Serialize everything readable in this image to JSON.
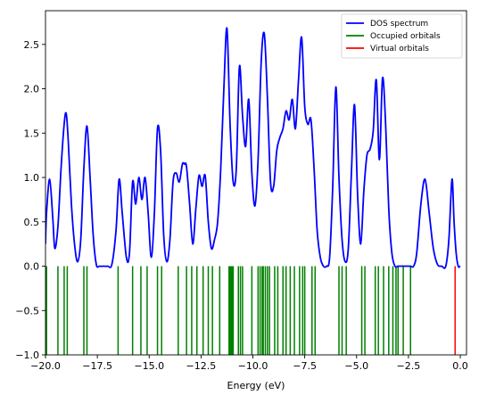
{
  "chart_data": {
    "type": "line",
    "xlabel": "Energy (eV)",
    "ylabel": "",
    "xlim": [
      -20.0,
      0.3
    ],
    "ylim": [
      -1.0,
      2.88
    ],
    "grid": false,
    "legend_placement": "top-right",
    "x_ticks": [
      -20.0,
      -17.5,
      -15.0,
      -12.5,
      -10.0,
      -7.5,
      -5.0,
      -2.5,
      0.0
    ],
    "x_tick_labels": [
      "−20.0",
      "−17.5",
      "−15.0",
      "−12.5",
      "−10.0",
      "−7.5",
      "−5.0",
      "−2.5",
      "0.0"
    ],
    "y_ticks": [
      -1.0,
      -0.5,
      0.0,
      0.5,
      1.0,
      1.5,
      2.0,
      2.5
    ],
    "y_tick_labels": [
      "−1.0",
      "−0.5",
      "0.0",
      "0.5",
      "1.0",
      "1.5",
      "2.0",
      "2.5"
    ],
    "series": [
      {
        "name": "DOS spectrum",
        "color": "#0000ff",
        "x": [
          -20.0,
          -19.95,
          -19.8,
          -19.65,
          -19.55,
          -19.4,
          -19.25,
          -19.1,
          -19.0,
          -18.9,
          -18.75,
          -18.6,
          -18.45,
          -18.3,
          -18.15,
          -18.0,
          -17.85,
          -17.7,
          -17.55,
          -17.4,
          -17.2,
          -17.0,
          -16.8,
          -16.6,
          -16.45,
          -16.3,
          -16.1,
          -15.95,
          -15.8,
          -15.65,
          -15.5,
          -15.35,
          -15.2,
          -15.05,
          -14.9,
          -14.75,
          -14.6,
          -14.45,
          -14.3,
          -14.15,
          -14.0,
          -13.85,
          -13.7,
          -13.55,
          -13.4,
          -13.3,
          -13.2,
          -13.05,
          -12.9,
          -12.75,
          -12.6,
          -12.45,
          -12.3,
          -12.15,
          -12.0,
          -11.85,
          -11.7,
          -11.55,
          -11.4,
          -11.25,
          -11.1,
          -10.95,
          -10.8,
          -10.65,
          -10.5,
          -10.35,
          -10.2,
          -10.05,
          -9.9,
          -9.75,
          -9.6,
          -9.45,
          -9.3,
          -9.15,
          -9.0,
          -8.85,
          -8.7,
          -8.55,
          -8.4,
          -8.25,
          -8.1,
          -7.95,
          -7.8,
          -7.65,
          -7.5,
          -7.35,
          -7.2,
          -7.05,
          -6.9,
          -6.75,
          -6.6,
          -6.45,
          -6.3,
          -6.15,
          -6.0,
          -5.85,
          -5.7,
          -5.55,
          -5.4,
          -5.25,
          -5.1,
          -4.95,
          -4.8,
          -4.65,
          -4.5,
          -4.35,
          -4.2,
          -4.05,
          -3.9,
          -3.75,
          -3.6,
          -3.45,
          -3.3,
          -3.15,
          -3.0,
          -2.85,
          -2.7,
          -2.55,
          -2.4,
          -2.25,
          -2.1,
          -1.9,
          -1.7,
          -1.5,
          -1.3,
          -1.1,
          -0.9,
          -0.7,
          -0.55,
          -0.4,
          -0.3,
          -0.2,
          -0.1,
          0.0
        ],
        "y": [
          0.25,
          0.6,
          0.98,
          0.55,
          0.2,
          0.45,
          1.1,
          1.6,
          1.72,
          1.4,
          0.7,
          0.25,
          0.05,
          0.3,
          1.1,
          1.58,
          1.0,
          0.35,
          0.02,
          0.0,
          0.0,
          0.0,
          0.02,
          0.4,
          0.98,
          0.6,
          0.1,
          0.15,
          0.95,
          0.7,
          1.0,
          0.75,
          1.0,
          0.6,
          0.1,
          0.6,
          1.55,
          1.3,
          0.35,
          0.05,
          0.3,
          0.95,
          1.05,
          0.95,
          1.15,
          1.15,
          1.12,
          0.7,
          0.25,
          0.65,
          1.02,
          0.9,
          1.02,
          0.5,
          0.2,
          0.3,
          0.5,
          1.1,
          2.0,
          2.68,
          1.6,
          0.95,
          1.1,
          2.25,
          1.7,
          1.35,
          1.88,
          1.05,
          0.68,
          1.2,
          2.3,
          2.62,
          1.9,
          0.95,
          0.9,
          1.3,
          1.45,
          1.55,
          1.75,
          1.65,
          1.88,
          1.55,
          2.1,
          2.58,
          1.8,
          1.6,
          1.65,
          1.1,
          0.4,
          0.1,
          0.0,
          0.0,
          0.1,
          0.9,
          2.02,
          1.0,
          0.3,
          0.05,
          0.2,
          1.05,
          1.82,
          0.8,
          0.25,
          0.85,
          1.25,
          1.32,
          1.52,
          2.1,
          1.2,
          2.12,
          1.6,
          0.65,
          0.15,
          0.0,
          0.0,
          0.0,
          0.0,
          0.0,
          0.0,
          0.0,
          0.15,
          0.7,
          0.98,
          0.6,
          0.2,
          0.02,
          0.0,
          0.0,
          0.3,
          0.98,
          0.5,
          0.15,
          0.0,
          0.0
        ]
      },
      {
        "name": "Occupied orbitals",
        "color": "#008000",
        "x": [
          -19.95,
          -19.4,
          -19.1,
          -18.95,
          -18.15,
          -18.0,
          -16.5,
          -15.8,
          -15.4,
          -15.1,
          -14.6,
          -14.4,
          -13.6,
          -13.2,
          -12.95,
          -12.7,
          -12.4,
          -12.15,
          -11.95,
          -11.6,
          -11.15,
          -11.1,
          -11.05,
          -11.0,
          -10.95,
          -10.7,
          -10.6,
          -10.5,
          -10.05,
          -9.75,
          -9.65,
          -9.55,
          -9.5,
          -9.4,
          -9.3,
          -9.2,
          -8.95,
          -8.8,
          -8.55,
          -8.4,
          -8.2,
          -8.0,
          -7.75,
          -7.6,
          -7.5,
          -7.15,
          -7.0,
          -5.85,
          -5.7,
          -5.5,
          -4.75,
          -4.6,
          -4.1,
          -3.95,
          -3.7,
          -3.45,
          -3.25,
          -3.1,
          -3.0,
          -2.75,
          -2.4
        ],
        "y_low": -1.0,
        "y_high": 0.0
      },
      {
        "name": "Virtual orbitals",
        "color": "#ff0000",
        "x": [
          -0.25
        ],
        "y_low": -1.0,
        "y_high": 0.0
      }
    ]
  }
}
